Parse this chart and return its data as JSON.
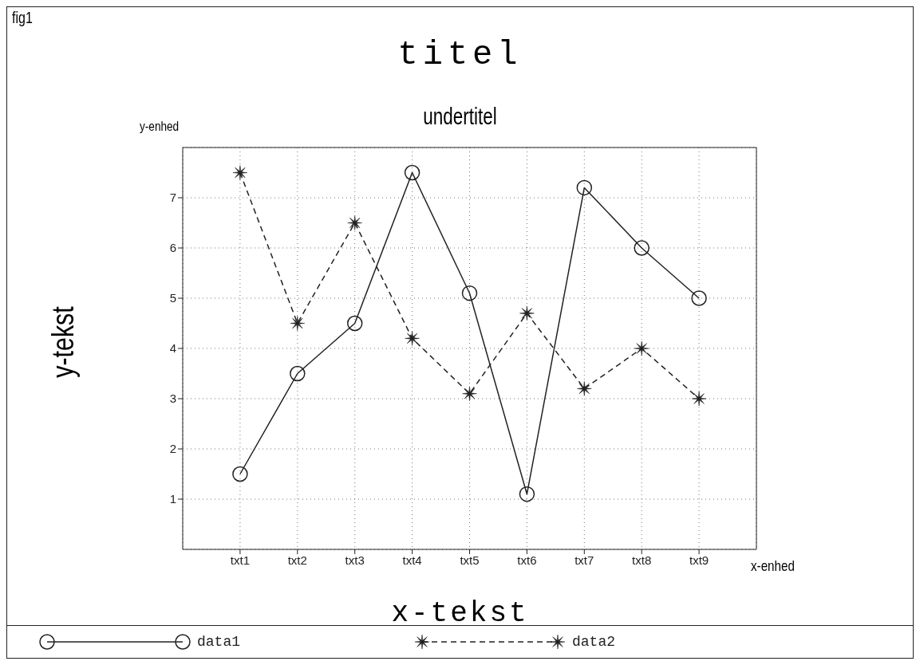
{
  "chart_data": {
    "type": "line",
    "title": "titel",
    "subtitle": "undertitel",
    "xlabel": "x-tekst",
    "ylabel": "y-tekst",
    "annotations": [
      "fig1",
      "y-enhed",
      "x-enhed"
    ],
    "categories": [
      "txt1",
      "txt2",
      "txt3",
      "txt4",
      "txt5",
      "txt6",
      "txt7",
      "txt8",
      "txt9"
    ],
    "series": [
      {
        "name": "data1",
        "color": "#222222",
        "marker": "circle",
        "line_style": "solid",
        "values": [
          1.5,
          3.5,
          4.5,
          7.5,
          5.1,
          1.1,
          7.2,
          6.0,
          5.0
        ]
      },
      {
        "name": "data2",
        "color": "#222222",
        "marker": "star",
        "line_style": "dashed",
        "values": [
          7.5,
          4.5,
          6.5,
          4.2,
          3.1,
          4.7,
          3.2,
          4.0,
          3.0
        ]
      }
    ],
    "ylim": [
      0,
      8
    ],
    "yticks": [
      1,
      2,
      3,
      4,
      5,
      6,
      7
    ],
    "grid": true,
    "legend": "bottom"
  }
}
